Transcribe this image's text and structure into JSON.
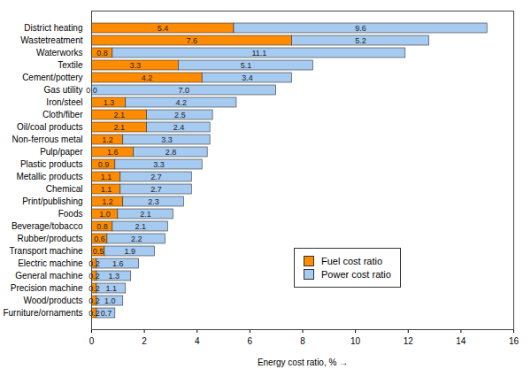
{
  "chart_data": {
    "type": "bar",
    "orientation": "horizontal",
    "stacked": true,
    "data_labels": true,
    "grid": false,
    "legend": "lower right",
    "xlabel": "Energy cost ratio, %",
    "xlim": [
      0,
      16
    ],
    "xticks": [
      0,
      2,
      4,
      6,
      8,
      10,
      12,
      14,
      16
    ],
    "categories": [
      "District heating",
      "Wastetreatment",
      "Waterworks",
      "Textile",
      "Cement/pottery",
      "Gas utility",
      "Iron/steel",
      "Cloth/fiber",
      "Oil/coal products",
      "Non-ferrous metal",
      "Pulp/paper",
      "Plastic products",
      "Metallic products",
      "Chemical",
      "Print/publishing",
      "Foods",
      "Beverage/tobacco",
      "Rubber/products",
      "Transport machine",
      "Electric machine",
      "General machine",
      "Precision machine",
      "Wood/products",
      "Furniture/ornaments"
    ],
    "series": [
      {
        "name": "Fuel cost ratio",
        "color": "#ff8c00",
        "values": [
          5.4,
          7.6,
          0.8,
          3.3,
          4.2,
          0.0,
          1.3,
          2.1,
          2.1,
          1.2,
          1.6,
          0.9,
          1.1,
          1.1,
          1.2,
          1.0,
          0.8,
          0.6,
          0.5,
          0.2,
          0.2,
          0.2,
          0.2,
          0.2
        ],
        "value_labels": [
          "5.4",
          "7.6",
          "0.8",
          "3.3",
          "4.2",
          "0.0",
          "1.3",
          "2.1",
          "2.1",
          "1.2",
          "1.6",
          "0.9",
          "1.1",
          "1.1",
          "1.2",
          "1.0",
          "0.8",
          "0.6",
          "0.5",
          "0.2",
          "0.2",
          "0.2",
          "0.2",
          "0.2"
        ]
      },
      {
        "name": "Power cost ratio",
        "color": "#a6caf0",
        "values": [
          9.6,
          5.2,
          11.1,
          5.1,
          3.4,
          7.0,
          4.2,
          2.5,
          2.4,
          3.3,
          2.8,
          3.3,
          2.7,
          2.7,
          2.3,
          2.1,
          2.1,
          2.2,
          1.9,
          1.6,
          1.3,
          1.1,
          1.0,
          0.7
        ],
        "value_labels": [
          "9.6",
          "5.2",
          "11.1",
          "5.1",
          "3.4",
          "7.0",
          "4.2",
          "2.5",
          "2.4",
          "3.3",
          "2.8",
          "3.3",
          "2.7",
          "2.7",
          "2.3",
          "2.1",
          "2.1",
          "2.2",
          "1.9",
          "1.6",
          "1.3",
          "1.1",
          "1.0",
          "0.7"
        ]
      }
    ]
  }
}
